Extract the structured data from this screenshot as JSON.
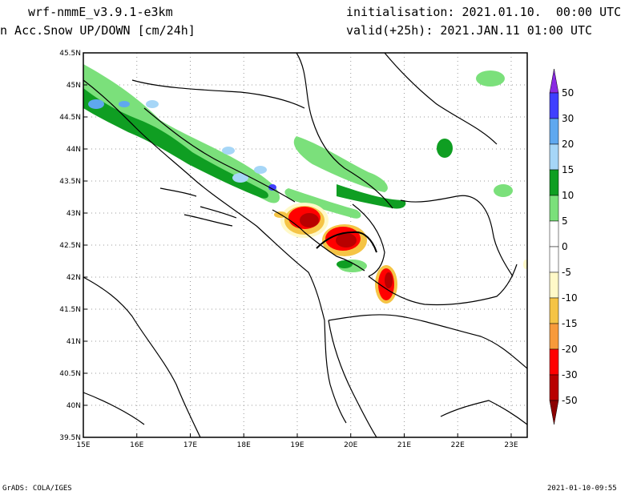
{
  "header": {
    "model": "wrf-nmmE_v3.9.1-e3km",
    "variable": "n Acc.Snow UP/DOWN [cm/24h]",
    "initialisation": "initialisation: 2021.01.10.  00:00 UTC",
    "valid": "valid(+25h): 2021.JAN.11 01:00 UTC"
  },
  "footer": {
    "credit": "GrADS: COLA/IGES",
    "timestamp": "2021-01-10-09:55"
  },
  "map": {
    "lat_labels": [
      "45.5N",
      "45N",
      "44.5N",
      "44N",
      "43.5N",
      "43N",
      "42.5N",
      "42N",
      "41.5N",
      "41N",
      "40.5N",
      "40N",
      "39.5N"
    ],
    "lon_labels": [
      "15E",
      "16E",
      "17E",
      "18E",
      "19E",
      "20E",
      "21E",
      "22E",
      "23E"
    ],
    "lat_range": [
      39.5,
      45.5
    ],
    "lon_range": [
      15,
      23.3
    ]
  },
  "colorbar": {
    "levels": [
      "50",
      "30",
      "20",
      "15",
      "10",
      "5",
      "0",
      "-5",
      "-10",
      "-15",
      "-20",
      "-30",
      "-50"
    ],
    "colors": [
      "#8a2be2",
      "#3f3fff",
      "#5fa8ef",
      "#a6d6f7",
      "#0f9e22",
      "#7be07b",
      "#ffffff",
      "#ffffff",
      "#fff9c8",
      "#f5c445",
      "#f79a3b",
      "#ff0000",
      "#b80000",
      "#8b0000"
    ]
  },
  "colors": {
    "snow_light": "#7be07b",
    "snow_mid": "#0f9e22",
    "snow_high": "#a6d6f7",
    "snow_very_high": "#5fa8ef",
    "snow_max": "#3f3fff",
    "melt_light": "#fff9c8",
    "melt_mid": "#f5c445",
    "melt_orange": "#f79a3b",
    "melt_red": "#ff0000",
    "melt_dark": "#b80000"
  }
}
